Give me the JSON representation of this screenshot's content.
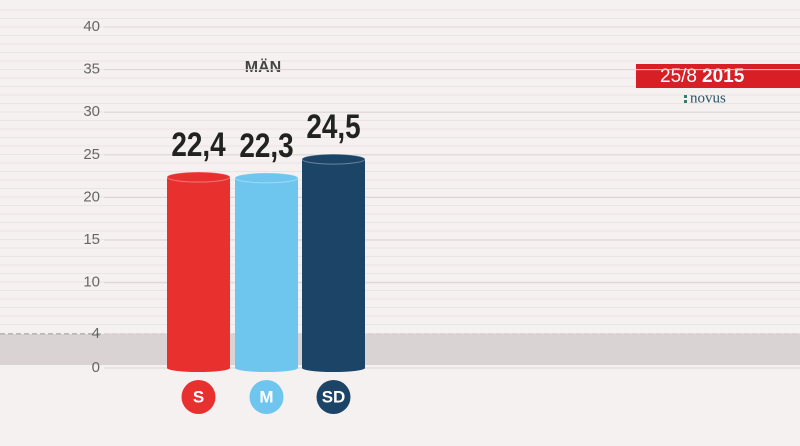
{
  "chart_data": {
    "type": "bar",
    "title": "MÄN",
    "categories": [
      "S",
      "M",
      "SD"
    ],
    "values": [
      22.4,
      22.3,
      24.5
    ],
    "value_labels": [
      "22,4",
      "22,3",
      "24,5"
    ],
    "colors": [
      "#e8302f",
      "#6ec6ee",
      "#1c4466"
    ],
    "ylim": [
      0,
      40
    ],
    "yticks": [
      0,
      4,
      10,
      15,
      20,
      25,
      30,
      35,
      40
    ],
    "threshold": 4,
    "grid": true,
    "date": {
      "day": "25/8",
      "year": "2015"
    },
    "source": "novus"
  }
}
